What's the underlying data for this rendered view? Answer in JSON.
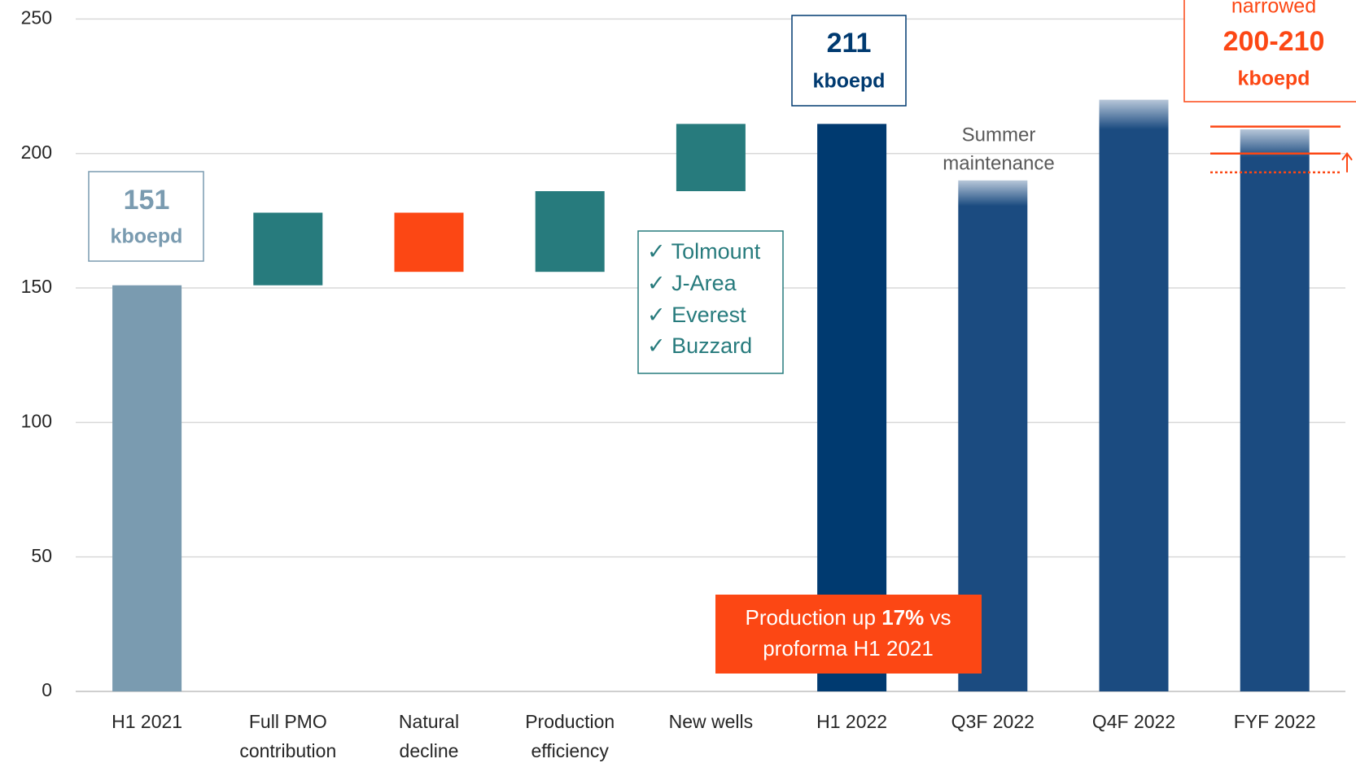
{
  "chart_data": {
    "type": "waterfall",
    "categories": [
      [
        "H1 2021"
      ],
      [
        "Full PMO",
        "contribution"
      ],
      [
        "Natural",
        "decline"
      ],
      [
        "Production",
        "efficiency"
      ],
      [
        "New wells"
      ],
      [
        "H1 2022"
      ],
      [
        "Q3F 2022"
      ],
      [
        "Q4F 2022"
      ],
      [
        "FYF 2022"
      ]
    ],
    "values": [
      151,
      27,
      -22,
      30,
      25,
      211,
      190,
      220,
      209
    ],
    "measure": [
      "total",
      "relative",
      "relative",
      "relative",
      "relative",
      "total",
      "forecast",
      "forecast",
      "forecast"
    ],
    "colors": [
      "#7a9bb0",
      "#277b7d",
      "#fc4714",
      "#277b7d",
      "#277b7d",
      "#003a70",
      "#1b4b80",
      "#1b4b80",
      "#1b4b80"
    ],
    "ylim": [
      0,
      250
    ],
    "yticks": [
      0,
      50,
      100,
      150,
      200,
      250
    ],
    "grid": true,
    "guidance": {
      "values": [
        210,
        200
      ],
      "previous": 193,
      "color": "#fc4714"
    },
    "annotations": {
      "start_box": [
        "151",
        "kboepd"
      ],
      "end_box": [
        "211",
        "kboepd"
      ],
      "guidance_box": [
        "narrowed",
        "200-210",
        "kboepd"
      ],
      "maintenance": [
        "Summer",
        "maintenance"
      ],
      "fields": [
        "✓ Tolmount",
        "✓ J-Area",
        "✓ Everest",
        "✓ Buzzard"
      ],
      "callout": [
        "Production up ",
        "17%",
        " vs",
        "proforma H1 2021"
      ]
    }
  }
}
